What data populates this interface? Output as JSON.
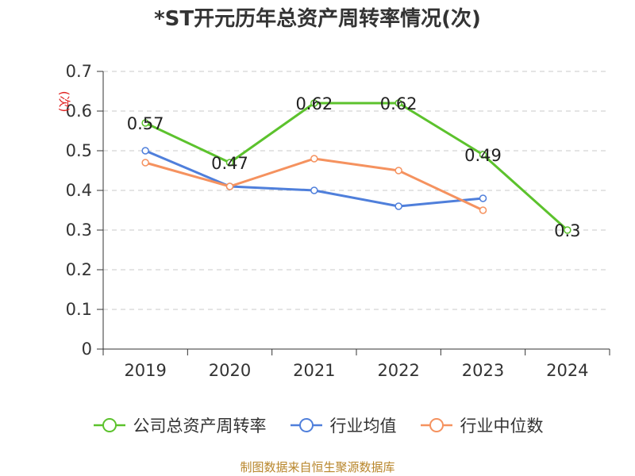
{
  "chart_data": {
    "type": "line",
    "title": "*ST开元历年总资产周转率情况(次)",
    "ylabel": "(次)",
    "xlabel": "",
    "categories": [
      "2019",
      "2020",
      "2021",
      "2022",
      "2023",
      "2024"
    ],
    "ylim": [
      0,
      0.7
    ],
    "yticks": [
      "0",
      "0.1",
      "0.2",
      "0.3",
      "0.4",
      "0.5",
      "0.6",
      "0.7"
    ],
    "grid": true,
    "legend_position": "bottom",
    "series": [
      {
        "name": "公司总资产周转率",
        "color": "#5cc22d",
        "values": [
          0.57,
          0.47,
          0.62,
          0.62,
          0.49,
          0.3
        ],
        "labels": [
          "0.57",
          "0.47",
          "0.62",
          "0.62",
          "0.49",
          "0.3"
        ],
        "show_labels": true
      },
      {
        "name": "行业均值",
        "color": "#4f7fdb",
        "values": [
          0.5,
          0.41,
          0.4,
          0.36,
          0.38,
          null
        ],
        "show_labels": false
      },
      {
        "name": "行业中位数",
        "color": "#f5925f",
        "values": [
          0.47,
          0.41,
          0.48,
          0.45,
          0.35,
          null
        ],
        "show_labels": false
      }
    ]
  },
  "source_note": "制图数据来自恒生聚源数据库"
}
